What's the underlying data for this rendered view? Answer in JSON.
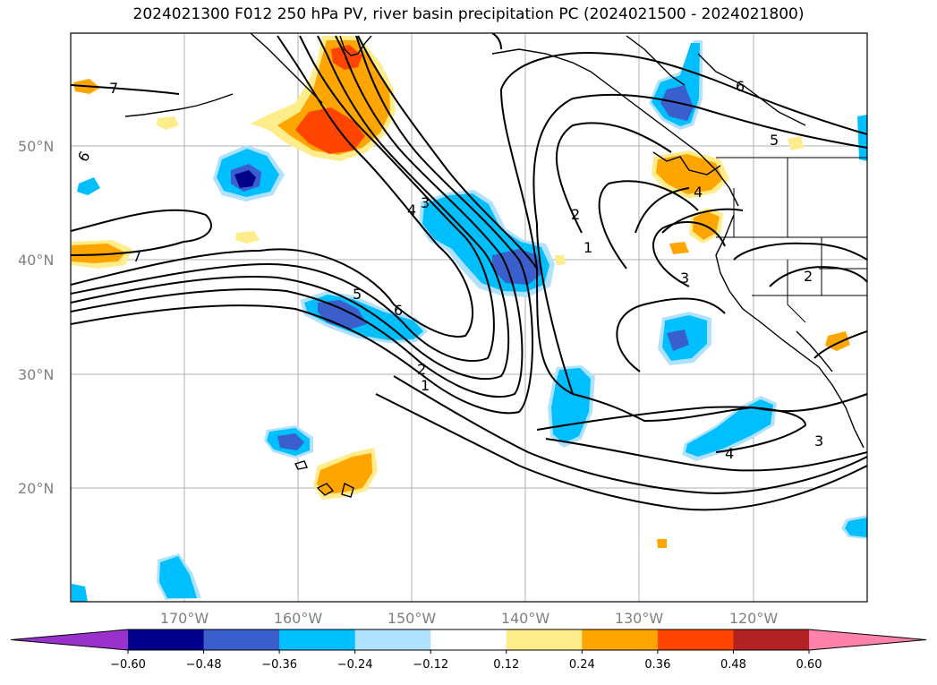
{
  "title": "2024021300 F012 250 hPa PV, river basin precipitation PC (2024021500 - 2024021800)",
  "lat_labels": [
    "50°N",
    "40°N",
    "30°N",
    "20°N"
  ],
  "lon_labels": [
    "170°W",
    "160°W",
    "150°W",
    "140°W",
    "130°W",
    "120°W"
  ],
  "colorbar": {
    "ticks": [
      "−0.60",
      "−0.48",
      "−0.36",
      "−0.24",
      "−0.12",
      "0.12",
      "0.24",
      "0.36",
      "0.48",
      "0.60"
    ],
    "colors": [
      "#9932cc",
      "#00008b",
      "#3a5fcd",
      "#00bfff",
      "#b0e2ff",
      "#ffffff",
      "#ffec8b",
      "#ffa500",
      "#ff4500",
      "#b22222",
      "#ff82ab"
    ]
  },
  "contour_labels": [
    "7",
    "7",
    "6",
    "6",
    "5",
    "5",
    "4",
    "4",
    "4",
    "3",
    "3",
    "3",
    "2",
    "2",
    "2",
    "1",
    "1",
    "5",
    "6",
    "3"
  ]
}
